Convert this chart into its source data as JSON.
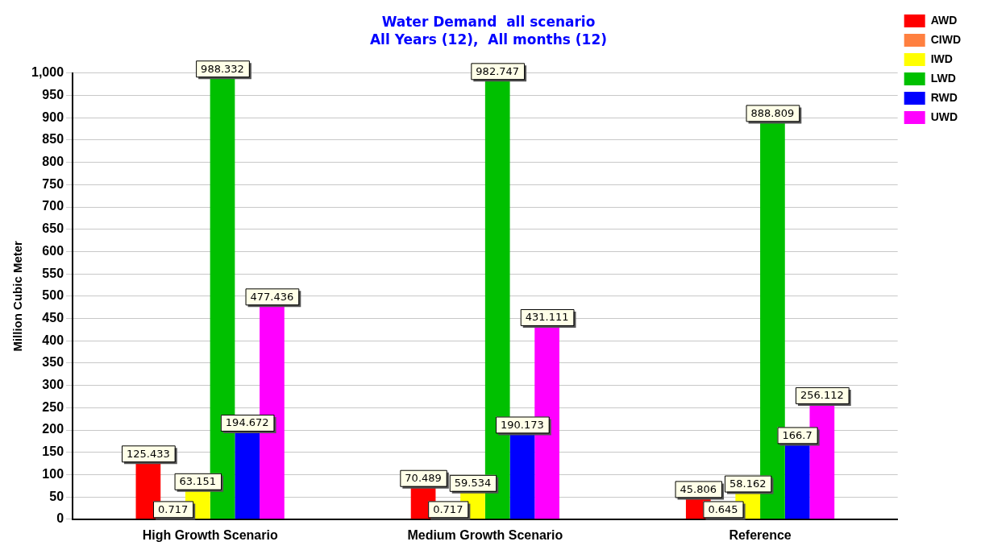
{
  "chart_data": {
    "type": "bar",
    "title": "Water Demand  all scenario",
    "subtitle": "All Years (12),  All months (12)",
    "ylabel": "Million Cubic Meter",
    "categories": [
      "High Growth Scenario",
      "Medium Growth Scenario",
      "Reference"
    ],
    "series": [
      {
        "name": "AWD",
        "color": "#ff0000",
        "values": [
          125.433,
          70.489,
          45.806
        ]
      },
      {
        "name": "CIWD",
        "color": "#ff8040",
        "values": [
          0.717,
          0.717,
          0.645
        ]
      },
      {
        "name": "IWD",
        "color": "#ffff00",
        "values": [
          63.151,
          59.534,
          58.162
        ]
      },
      {
        "name": "LWD",
        "color": "#00c000",
        "values": [
          988.332,
          982.747,
          888.809
        ]
      },
      {
        "name": "RWD",
        "color": "#0000ff",
        "values": [
          194.672,
          190.173,
          166.7
        ]
      },
      {
        "name": "UWD",
        "color": "#ff00ff",
        "values": [
          477.436,
          431.111,
          256.112
        ]
      }
    ],
    "ylim": [
      0,
      1000
    ],
    "yticks": [
      0,
      50,
      100,
      150,
      200,
      250,
      300,
      350,
      400,
      450,
      500,
      550,
      600,
      650,
      700,
      750,
      800,
      850,
      900,
      950,
      {
        "value": 1000,
        "label": "1,000"
      }
    ],
    "grid": "y",
    "legend": "top right",
    "data_labels": true
  }
}
